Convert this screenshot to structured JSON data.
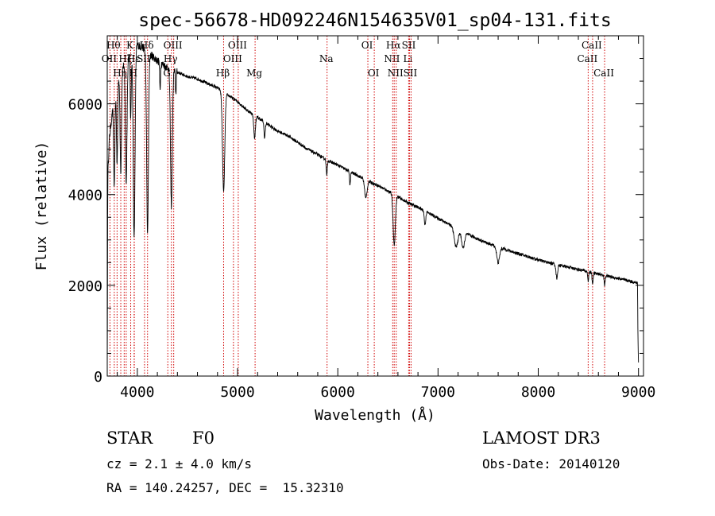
{
  "chart_data": {
    "type": "line",
    "title": "spec-56678-HD092246N154635V01_sp04-131.fits",
    "xlabel": "Wavelength (Å)",
    "ylabel": "Flux (relative)",
    "xlim": [
      3700,
      9050
    ],
    "ylim": [
      0,
      7500
    ],
    "xticks": [
      4000,
      5000,
      6000,
      7000,
      8000,
      9000
    ],
    "yticks": [
      0,
      2000,
      4000,
      6000
    ],
    "xtick_labels": [
      "4000",
      "5000",
      "6000",
      "7000",
      "8000",
      "9000"
    ],
    "ytick_labels": [
      "0",
      "2000",
      "4000",
      "6000"
    ],
    "continuum": [
      [
        3700,
        0
      ],
      [
        3705,
        4400
      ],
      [
        3720,
        5200
      ],
      [
        3760,
        6000
      ],
      [
        3800,
        6500
      ],
      [
        3850,
        6800
      ],
      [
        3900,
        7000
      ],
      [
        3950,
        7200
      ],
      [
        4000,
        7300
      ],
      [
        4050,
        7250
      ],
      [
        4100,
        7150
      ],
      [
        4200,
        6950
      ],
      [
        4300,
        6800
      ],
      [
        4400,
        6700
      ],
      [
        4500,
        6600
      ],
      [
        4600,
        6550
      ],
      [
        4700,
        6450
      ],
      [
        4800,
        6350
      ],
      [
        4900,
        6200
      ],
      [
        5000,
        6050
      ],
      [
        5100,
        5850
      ],
      [
        5200,
        5700
      ],
      [
        5300,
        5550
      ],
      [
        5400,
        5400
      ],
      [
        5500,
        5300
      ],
      [
        5600,
        5150
      ],
      [
        5700,
        5000
      ],
      [
        5800,
        4880
      ],
      [
        5900,
        4750
      ],
      [
        6000,
        4650
      ],
      [
        6100,
        4530
      ],
      [
        6200,
        4420
      ],
      [
        6300,
        4300
      ],
      [
        6400,
        4200
      ],
      [
        6500,
        4080
      ],
      [
        6600,
        3950
      ],
      [
        6700,
        3820
      ],
      [
        6800,
        3720
      ],
      [
        6900,
        3600
      ],
      [
        7000,
        3480
      ],
      [
        7100,
        3360
      ],
      [
        7200,
        3220
      ],
      [
        7300,
        3120
      ],
      [
        7400,
        3020
      ],
      [
        7500,
        2920
      ],
      [
        7600,
        2850
      ],
      [
        7700,
        2770
      ],
      [
        7800,
        2700
      ],
      [
        7900,
        2630
      ],
      [
        8000,
        2560
      ],
      [
        8100,
        2500
      ],
      [
        8200,
        2450
      ],
      [
        8300,
        2400
      ],
      [
        8400,
        2350
      ],
      [
        8500,
        2300
      ],
      [
        8600,
        2250
      ],
      [
        8700,
        2200
      ],
      [
        8800,
        2150
      ],
      [
        8900,
        2100
      ],
      [
        8990,
        2050
      ],
      [
        8995,
        800
      ],
      [
        9000,
        300
      ]
    ],
    "absorption_lines": [
      [
        3770,
        2000,
        6
      ],
      [
        3798,
        1800,
        6
      ],
      [
        3835,
        2200,
        7
      ],
      [
        3889,
        2700,
        8
      ],
      [
        3934,
        1500,
        5
      ],
      [
        3968,
        4200,
        9
      ],
      [
        4102,
        4000,
        9
      ],
      [
        4227,
        600,
        4
      ],
      [
        4340,
        3000,
        9
      ],
      [
        4384,
        500,
        4
      ],
      [
        4861,
        2200,
        11
      ],
      [
        5170,
        500,
        8
      ],
      [
        5270,
        350,
        6
      ],
      [
        5890,
        350,
        5
      ],
      [
        6122,
        300,
        5
      ],
      [
        6280,
        400,
        12
      ],
      [
        6563,
        1100,
        11
      ],
      [
        6870,
        300,
        7
      ],
      [
        7180,
        400,
        18
      ],
      [
        7250,
        350,
        14
      ],
      [
        7600,
        350,
        14
      ],
      [
        8185,
        300,
        8
      ],
      [
        8498,
        200,
        5
      ],
      [
        8542,
        250,
        5
      ],
      [
        8662,
        220,
        5
      ]
    ],
    "line_markers": [
      {
        "wavelength": 3727,
        "label": "OII",
        "tier": 2
      },
      {
        "wavelength": 3770,
        "label": "Hθ",
        "tier": 1
      },
      {
        "wavelength": 3798,
        "label": "",
        "tier": 0
      },
      {
        "wavelength": 3835,
        "label": "Hη",
        "tier": 3
      },
      {
        "wavelength": 3869,
        "label": "",
        "tier": 0
      },
      {
        "wavelength": 3889,
        "label": "Hζ",
        "tier": 2
      },
      {
        "wavelength": 3934,
        "label": "K",
        "tier": 1
      },
      {
        "wavelength": 3968,
        "label": "H",
        "tier": 3
      },
      {
        "wavelength": 3970,
        "label": "Hε",
        "tier": 2
      },
      {
        "wavelength": 4072,
        "label": "SII",
        "tier": 2
      },
      {
        "wavelength": 4102,
        "label": "Hδ",
        "tier": 1
      },
      {
        "wavelength": 4304,
        "label": "G",
        "tier": 3
      },
      {
        "wavelength": 4340,
        "label": "Hγ",
        "tier": 2
      },
      {
        "wavelength": 4363,
        "label": "OIII",
        "tier": 1
      },
      {
        "wavelength": 4861,
        "label": "Hβ",
        "tier": 3
      },
      {
        "wavelength": 4959,
        "label": "OIII",
        "tier": 2
      },
      {
        "wavelength": 5007,
        "label": "OIII",
        "tier": 1
      },
      {
        "wavelength": 5175,
        "label": "Mg",
        "tier": 3
      },
      {
        "wavelength": 5893,
        "label": "Na",
        "tier": 2
      },
      {
        "wavelength": 6300,
        "label": "OI",
        "tier": 1
      },
      {
        "wavelength": 6364,
        "label": "OI",
        "tier": 3
      },
      {
        "wavelength": 6548,
        "label": "NII",
        "tier": 2
      },
      {
        "wavelength": 6563,
        "label": "Hα",
        "tier": 1
      },
      {
        "wavelength": 6583,
        "label": "NII",
        "tier": 3
      },
      {
        "wavelength": 6707,
        "label": "Li",
        "tier": 2
      },
      {
        "wavelength": 6716,
        "label": "SII",
        "tier": 1
      },
      {
        "wavelength": 6731,
        "label": "SII",
        "tier": 3
      },
      {
        "wavelength": 8498,
        "label": "CaII",
        "tier": 2
      },
      {
        "wavelength": 8542,
        "label": "CaII",
        "tier": 1
      },
      {
        "wavelength": 8662,
        "label": "CaII",
        "tier": 3
      }
    ]
  },
  "info": {
    "object_class": "STAR",
    "subclass": "F0",
    "redshift": "cz = 2.1 ± 4.0 km/s",
    "coordinates": "RA = 140.24257, DEC =  15.32310",
    "survey": "LAMOST DR3",
    "obs_date": "Obs-Date: 20140120"
  }
}
